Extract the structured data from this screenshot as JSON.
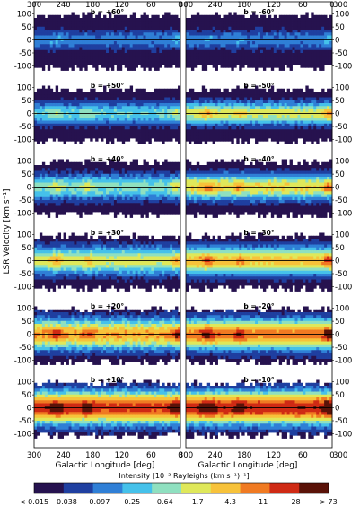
{
  "chart_data": {
    "type": "heatmap",
    "panel_grid": {
      "rows": 6,
      "cols": 2
    },
    "xlabel": "Galactic Longitude [deg]",
    "ylabel": "LSR Velocity [km s⁻¹]",
    "x_ticks": [
      300,
      240,
      180,
      120,
      60,
      0
    ],
    "x_ticks_right": [
      300,
      240,
      180,
      120,
      60,
      0,
      300
    ],
    "x_range": [
      300,
      0
    ],
    "y_ticks": [
      100,
      50,
      0,
      -50,
      -100
    ],
    "y_range": [
      -140,
      130
    ],
    "panels": [
      {
        "title": "b = +60°",
        "latitude": 60,
        "col": 0,
        "row": 0,
        "peak": 0.25,
        "band_width": 40
      },
      {
        "title": "b = -60°",
        "latitude": -60,
        "col": 1,
        "row": 0,
        "peak": 0.25,
        "band_width": 40
      },
      {
        "title": "b = +50°",
        "latitude": 50,
        "col": 0,
        "row": 1,
        "peak": 0.4,
        "band_width": 45
      },
      {
        "title": "b = -50°",
        "latitude": -50,
        "col": 1,
        "row": 1,
        "peak": 0.55,
        "band_width": 45
      },
      {
        "title": "b = +40°",
        "latitude": 40,
        "col": 0,
        "row": 2,
        "peak": 0.45,
        "band_width": 50
      },
      {
        "title": "b = -40°",
        "latitude": -40,
        "col": 1,
        "row": 2,
        "peak": 0.6,
        "band_width": 50
      },
      {
        "title": "b = +30°",
        "latitude": 30,
        "col": 0,
        "row": 3,
        "peak": 0.55,
        "band_width": 55
      },
      {
        "title": "b = -30°",
        "latitude": -30,
        "col": 1,
        "row": 3,
        "peak": 0.65,
        "band_width": 55
      },
      {
        "title": "b = +20°",
        "latitude": 20,
        "col": 0,
        "row": 4,
        "peak": 0.7,
        "band_width": 60
      },
      {
        "title": "b = -20°",
        "latitude": -20,
        "col": 1,
        "row": 4,
        "peak": 0.75,
        "band_width": 60
      },
      {
        "title": "b = +10°",
        "latitude": 10,
        "col": 0,
        "row": 5,
        "peak": 0.85,
        "band_width": 65
      },
      {
        "title": "b = -10°",
        "latitude": -10,
        "col": 1,
        "row": 5,
        "peak": 0.88,
        "band_width": 65
      }
    ],
    "colorbar": {
      "title": "Intensity [10⁻² Rayleighs (km s⁻¹)⁻¹]",
      "labels": [
        "< 0.015",
        "0.038",
        "0.097",
        "0.25",
        "0.64",
        "1.7",
        "4.3",
        "11",
        "28",
        "> 73"
      ],
      "colors": [
        "#26124f",
        "#1f3fa0",
        "#2f7fd6",
        "#45c1ea",
        "#8fe0c0",
        "#dfe85a",
        "#f7c23a",
        "#f07a22",
        "#cf2a14",
        "#5a1208"
      ],
      "scale": "log"
    }
  }
}
